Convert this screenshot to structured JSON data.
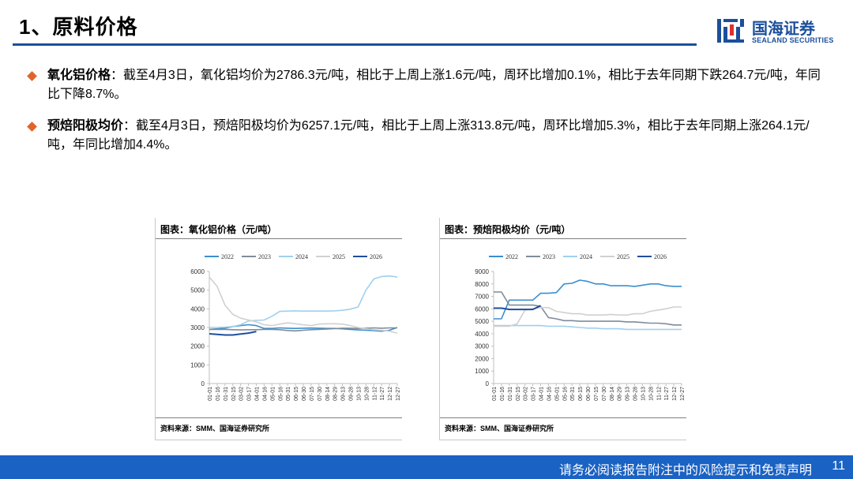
{
  "header": {
    "title": "1、原料价格",
    "logo_cn": "国海证券",
    "logo_en": "SEALAND SECURITIES",
    "accent_color": "#1b4f9c"
  },
  "bullets": [
    {
      "label": "氧化铝价格",
      "text": "：截至4月3日，氧化铝均价为2786.3元/吨，相比于上周上涨1.6元/吨，周环比增加0.1%，相比于去年同期下跌264.7元/吨，年同比下降8.7%。"
    },
    {
      "label": "预焙阳极均价",
      "text": "：截至4月3日，预焙阳极均价为6257.1元/吨，相比于上周上涨313.8元/吨，周环比增加5.3%，相比于去年同期上涨264.1元/吨，年同比增加4.4%。"
    }
  ],
  "footer": {
    "disclaimer": "请务必阅读报告附注中的风险提示和免责声明",
    "page": "11"
  },
  "chart_data": [
    {
      "type": "line",
      "panel_title": "图表：氧化铝价格（元/吨）",
      "source": "资料来源：SMM、国海证券研究所",
      "x": [
        "01-01",
        "01-16",
        "01-31",
        "02-15",
        "03-02",
        "03-17",
        "04-01",
        "04-16",
        "05-01",
        "05-16",
        "05-31",
        "06-15",
        "06-30",
        "07-15",
        "07-30",
        "08-14",
        "08-29",
        "09-13",
        "09-28",
        "10-13",
        "10-28",
        "11-12",
        "11-27",
        "12-12",
        "12-27"
      ],
      "ylim": [
        0,
        6000
      ],
      "yticks": [
        0,
        1000,
        2000,
        3000,
        4000,
        5000,
        6000
      ],
      "legend_position": "top",
      "series": [
        {
          "name": "2022",
          "color": "#3a8fd0",
          "values": [
            2900,
            2930,
            2960,
            3050,
            3100,
            3150,
            3100,
            2950,
            2950,
            2980,
            2960,
            2950,
            2960,
            2970,
            2960,
            2950,
            2950,
            2930,
            2900,
            2870,
            2850,
            2830,
            2800,
            2850,
            3000
          ]
        },
        {
          "name": "2023",
          "color": "#7f8c9a",
          "values": [
            2900,
            2900,
            2900,
            2880,
            2870,
            2880,
            2880,
            2900,
            2900,
            2880,
            2840,
            2820,
            2850,
            2880,
            2900,
            2920,
            2940,
            2960,
            2960,
            2950,
            2960,
            2980,
            2960,
            2980,
            2980
          ]
        },
        {
          "name": "2024",
          "color": "#9fd0ee",
          "values": [
            3000,
            3000,
            3020,
            3050,
            3150,
            3350,
            3380,
            3400,
            3600,
            3860,
            3880,
            3890,
            3880,
            3880,
            3880,
            3880,
            3890,
            3920,
            3980,
            4100,
            5000,
            5600,
            5730,
            5760,
            5700
          ]
        },
        {
          "name": "2025",
          "color": "#d0d0d0",
          "values": [
            5700,
            5200,
            4200,
            3700,
            3500,
            3400,
            3300,
            3150,
            3100,
            3180,
            3250,
            3200,
            3150,
            3100,
            3180,
            3200,
            3200,
            3180,
            3100,
            3000,
            2930,
            2880,
            2850,
            2800,
            2700
          ]
        },
        {
          "name": "2026",
          "color": "#1f4e9c",
          "values": [
            2660,
            2630,
            2600,
            2600,
            2650,
            2700,
            2786.3,
            null,
            null,
            null,
            null,
            null,
            null,
            null,
            null,
            null,
            null,
            null,
            null,
            null,
            null,
            null,
            null,
            null,
            null
          ]
        }
      ]
    },
    {
      "type": "line",
      "panel_title": "图表：预焙阳极均价（元/吨）",
      "source": "资料来源：SMM、国海证券研究所",
      "x": [
        "01-01",
        "01-16",
        "01-31",
        "02-15",
        "03-02",
        "03-17",
        "04-01",
        "04-16",
        "05-01",
        "05-16",
        "05-31",
        "06-15",
        "06-30",
        "07-15",
        "07-30",
        "08-14",
        "08-29",
        "09-13",
        "09-28",
        "10-13",
        "10-28",
        "11-12",
        "11-27",
        "12-12",
        "12-27"
      ],
      "ylim": [
        0,
        9000
      ],
      "yticks": [
        0,
        1000,
        2000,
        3000,
        4000,
        5000,
        6000,
        7000,
        8000,
        9000
      ],
      "legend_position": "top",
      "series": [
        {
          "name": "2022",
          "color": "#3a8fd0",
          "values": [
            5200,
            5200,
            6700,
            6700,
            6700,
            6700,
            7250,
            7250,
            7300,
            8000,
            8050,
            8300,
            8200,
            8000,
            8000,
            7850,
            7850,
            7850,
            7800,
            7900,
            8000,
            8000,
            7850,
            7800,
            7800
          ]
        },
        {
          "name": "2023",
          "color": "#7f8c9a",
          "values": [
            7350,
            7350,
            6300,
            6300,
            6300,
            6300,
            6200,
            5300,
            5200,
            5050,
            5050,
            5000,
            5000,
            5000,
            5000,
            5000,
            5000,
            4950,
            4950,
            4900,
            4850,
            4850,
            4800,
            4700,
            4700
          ]
        },
        {
          "name": "2024",
          "color": "#9fd0ee",
          "values": [
            4650,
            4650,
            4650,
            4650,
            4650,
            4650,
            4650,
            4600,
            4600,
            4600,
            4550,
            4500,
            4450,
            4450,
            4400,
            4400,
            4400,
            4350,
            4350,
            4350,
            4350,
            4350,
            4350,
            4350,
            4350
          ]
        },
        {
          "name": "2025",
          "color": "#d0d0d0",
          "values": [
            4600,
            4600,
            4600,
            4800,
            5900,
            6000,
            6100,
            6100,
            5800,
            5700,
            5600,
            5600,
            5500,
            5500,
            5500,
            5550,
            5500,
            5500,
            5600,
            5600,
            5800,
            5900,
            6000,
            6150,
            6150
          ]
        },
        {
          "name": "2026",
          "color": "#1f4e9c",
          "values": [
            6050,
            6050,
            5950,
            5950,
            5950,
            5950,
            6257.1,
            null,
            null,
            null,
            null,
            null,
            null,
            null,
            null,
            null,
            null,
            null,
            null,
            null,
            null,
            null,
            null,
            null,
            null
          ]
        }
      ]
    }
  ]
}
